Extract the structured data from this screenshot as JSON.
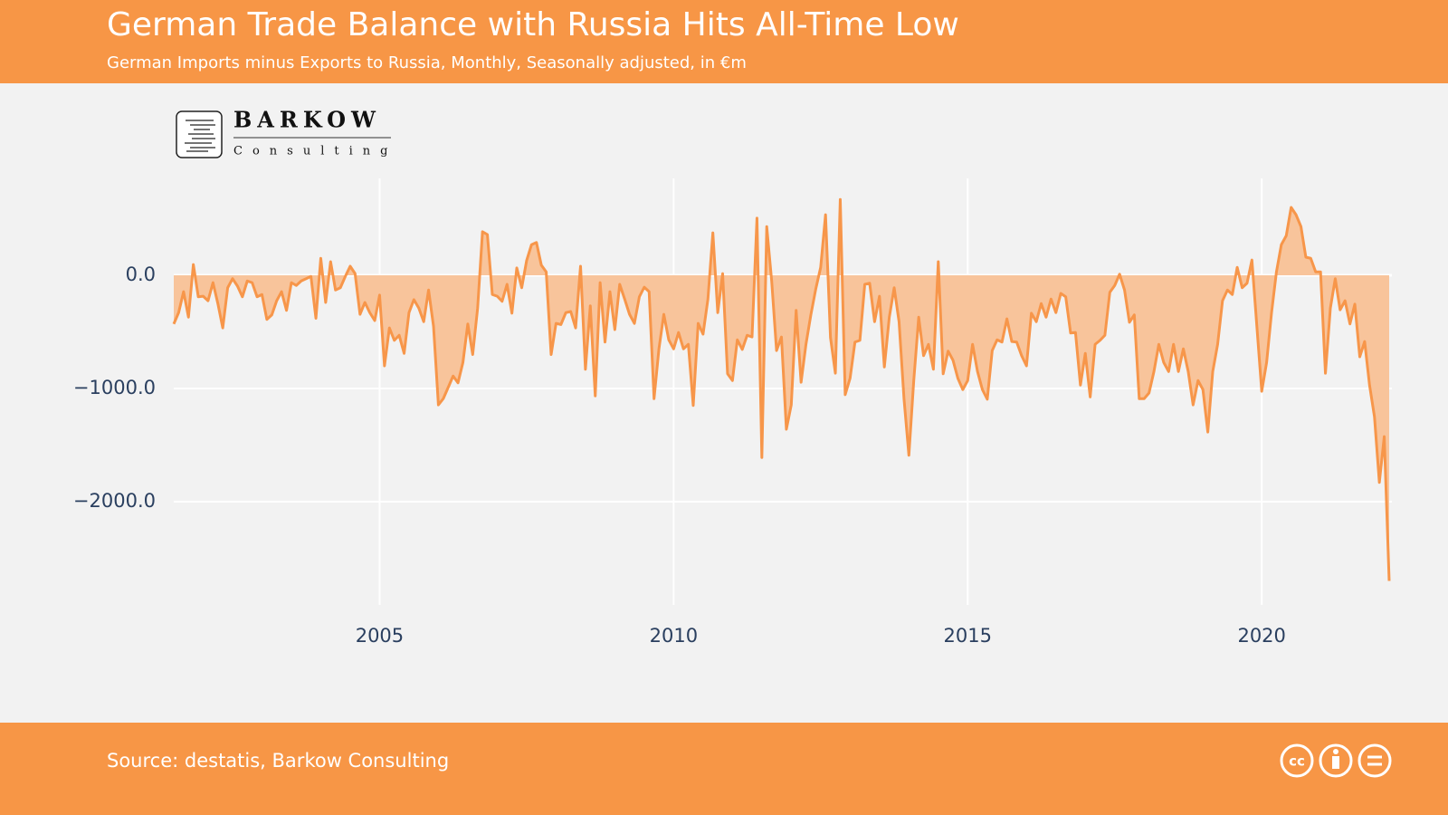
{
  "chart_data": {
    "type": "area",
    "title": "German Trade Balance with Russia Hits All-Time Low",
    "subtitle": "German Imports minus Exports to Russia, Monthly, Seasonally adjusted, in €m",
    "source": "Source: destatis, Barkow Consulting",
    "logo": {
      "name": "BARKOW",
      "tagline": "Consulting"
    },
    "xlim": [
      2001.5,
      2022.167
    ],
    "xticks": [
      2005,
      2010,
      2015,
      2020
    ],
    "ylim": [
      -2912,
      856
    ],
    "yticks": [
      {
        "value": 0,
        "label": "0.0"
      },
      {
        "value": -1000,
        "label": "−1000.0"
      },
      {
        "value": -2000,
        "label": "−2000.0"
      }
    ],
    "grid": true,
    "x": [
      2001.5,
      2001.583,
      2001.667,
      2001.75,
      2001.833,
      2001.917,
      2002,
      2002.083,
      2002.167,
      2002.25,
      2002.333,
      2002.417,
      2002.5,
      2002.583,
      2002.667,
      2002.75,
      2002.833,
      2002.917,
      2003,
      2003.083,
      2003.167,
      2003.25,
      2003.333,
      2003.417,
      2003.5,
      2003.583,
      2003.667,
      2003.75,
      2003.833,
      2003.917,
      2004,
      2004.083,
      2004.167,
      2004.25,
      2004.333,
      2004.417,
      2004.5,
      2004.583,
      2004.667,
      2004.75,
      2004.833,
      2004.917,
      2005,
      2005.083,
      2005.167,
      2005.25,
      2005.333,
      2005.417,
      2005.5,
      2005.583,
      2005.667,
      2005.75,
      2005.833,
      2005.917,
      2006,
      2006.083,
      2006.167,
      2006.25,
      2006.333,
      2006.417,
      2006.5,
      2006.583,
      2006.667,
      2006.75,
      2006.833,
      2006.917,
      2007,
      2007.083,
      2007.167,
      2007.25,
      2007.333,
      2007.417,
      2007.5,
      2007.583,
      2007.667,
      2007.75,
      2007.833,
      2007.917,
      2008,
      2008.083,
      2008.167,
      2008.25,
      2008.333,
      2008.417,
      2008.5,
      2008.583,
      2008.667,
      2008.75,
      2008.833,
      2008.917,
      2009,
      2009.083,
      2009.167,
      2009.25,
      2009.333,
      2009.417,
      2009.5,
      2009.583,
      2009.667,
      2009.75,
      2009.833,
      2009.917,
      2010,
      2010.083,
      2010.167,
      2010.25,
      2010.333,
      2010.417,
      2010.5,
      2010.583,
      2010.667,
      2010.75,
      2010.833,
      2010.917,
      2011,
      2011.083,
      2011.167,
      2011.25,
      2011.333,
      2011.417,
      2011.5,
      2011.583,
      2011.667,
      2011.75,
      2011.833,
      2011.917,
      2012,
      2012.083,
      2012.167,
      2012.25,
      2012.333,
      2012.417,
      2012.5,
      2012.583,
      2012.667,
      2012.75,
      2012.833,
      2012.917,
      2013,
      2013.083,
      2013.167,
      2013.25,
      2013.333,
      2013.417,
      2013.5,
      2013.583,
      2013.667,
      2013.75,
      2013.833,
      2013.917,
      2014,
      2014.083,
      2014.167,
      2014.25,
      2014.333,
      2014.417,
      2014.5,
      2014.583,
      2014.667,
      2014.75,
      2014.833,
      2014.917,
      2015,
      2015.083,
      2015.167,
      2015.25,
      2015.333,
      2015.417,
      2015.5,
      2015.583,
      2015.667,
      2015.75,
      2015.833,
      2015.917,
      2016,
      2016.083,
      2016.167,
      2016.25,
      2016.333,
      2016.417,
      2016.5,
      2016.583,
      2016.667,
      2016.75,
      2016.833,
      2016.917,
      2017,
      2017.083,
      2017.167,
      2017.25,
      2017.333,
      2017.417,
      2017.5,
      2017.583,
      2017.667,
      2017.75,
      2017.833,
      2017.917,
      2018,
      2018.083,
      2018.167,
      2018.25,
      2018.333,
      2018.417,
      2018.5,
      2018.583,
      2018.667,
      2018.75,
      2018.833,
      2018.917,
      2019,
      2019.083,
      2019.167,
      2019.25,
      2019.333,
      2019.417,
      2019.5,
      2019.583,
      2019.667,
      2019.75,
      2019.833,
      2019.917,
      2020,
      2020.083,
      2020.167,
      2020.25,
      2020.333,
      2020.417,
      2020.5,
      2020.583,
      2020.667,
      2020.75,
      2020.833,
      2020.917,
      2021,
      2021.083,
      2021.167,
      2021.25,
      2021.333,
      2021.417,
      2021.5,
      2021.583,
      2021.667,
      2021.75,
      2021.833,
      2021.917,
      2022,
      2022.083,
      2022.167
    ],
    "series": [
      {
        "color": "#f7964a",
        "area_color": "#f8c49b",
        "values": [
          -430,
          -330,
          -145,
          -370,
          95,
          -190,
          -185,
          -225,
          -65,
          -250,
          -465,
          -110,
          -30,
          -95,
          -190,
          -50,
          -65,
          -190,
          -170,
          -390,
          -350,
          -225,
          -145,
          -310,
          -65,
          -90,
          -50,
          -30,
          -10,
          -380,
          150,
          -240,
          120,
          -130,
          -110,
          -10,
          80,
          15,
          -345,
          -240,
          -330,
          -400,
          -175,
          -800,
          -465,
          -575,
          -530,
          -690,
          -330,
          -215,
          -290,
          -410,
          -130,
          -450,
          -1145,
          -1090,
          -990,
          -890,
          -950,
          -770,
          -430,
          -700,
          -290,
          385,
          360,
          -170,
          -185,
          -230,
          -80,
          -335,
          65,
          -110,
          130,
          270,
          290,
          90,
          30,
          -700,
          -425,
          -435,
          -330,
          -320,
          -465,
          80,
          -830,
          -270,
          -1065,
          -65,
          -590,
          -145,
          -480,
          -80,
          -210,
          -345,
          -425,
          -190,
          -105,
          -145,
          -1090,
          -650,
          -345,
          -570,
          -650,
          -505,
          -650,
          -610,
          -1150,
          -425,
          -520,
          -210,
          375,
          -330,
          15,
          -870,
          -930,
          -570,
          -655,
          -530,
          -545,
          505,
          -1610,
          430,
          -50,
          -665,
          -545,
          -1360,
          -1145,
          -310,
          -945,
          -610,
          -350,
          -120,
          70,
          535,
          -550,
          -865,
          670,
          -1055,
          -910,
          -590,
          -575,
          -80,
          -70,
          -410,
          -185,
          -810,
          -370,
          -110,
          -410,
          -1090,
          -1590,
          -930,
          -370,
          -710,
          -610,
          -830,
          120,
          -870,
          -670,
          -750,
          -910,
          -1010,
          -930,
          -610,
          -850,
          -1010,
          -1095,
          -665,
          -570,
          -590,
          -385,
          -585,
          -590,
          -710,
          -800,
          -335,
          -410,
          -250,
          -370,
          -210,
          -330,
          -160,
          -190,
          -510,
          -505,
          -970,
          -690,
          -1075,
          -610,
          -575,
          -530,
          -150,
          -90,
          10,
          -130,
          -415,
          -350,
          -1090,
          -1090,
          -1040,
          -850,
          -610,
          -770,
          -850,
          -610,
          -850,
          -650,
          -850,
          -1145,
          -930,
          -1010,
          -1385,
          -850,
          -610,
          -225,
          -130,
          -170,
          70,
          -110,
          -70,
          135,
          -450,
          -1025,
          -770,
          -330,
          30,
          270,
          350,
          600,
          535,
          430,
          160,
          150,
          30,
          30,
          -865,
          -290,
          -30,
          -305,
          -225,
          -430,
          -255,
          -720,
          -585,
          -970,
          -1250,
          -1830,
          -1425,
          -2700
        ]
      }
    ]
  }
}
